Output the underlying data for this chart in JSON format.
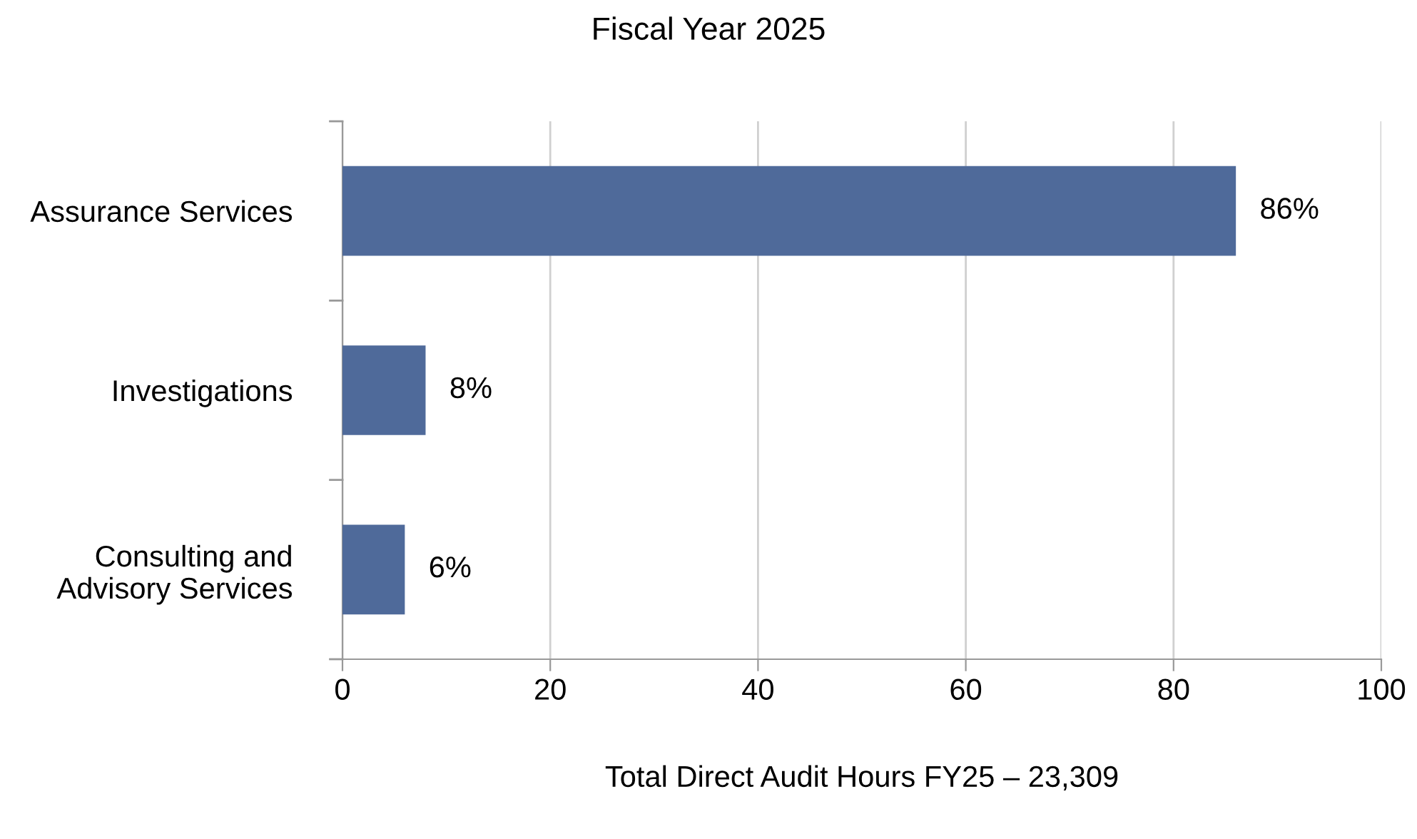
{
  "chart_data": {
    "type": "bar",
    "orientation": "horizontal",
    "title": "Fiscal Year 2025",
    "xlabel": "Total Direct Audit Hours FY25 – 23,309",
    "categories": [
      "Assurance Services",
      "Investigations",
      "Consulting and\nAdvisory Services"
    ],
    "values": [
      86,
      8,
      6
    ],
    "value_labels": [
      "86%",
      "8%",
      "6%"
    ],
    "color": "#4f6a9a",
    "xlim": [
      0,
      100
    ],
    "xticks": [
      0,
      20,
      40,
      60,
      80,
      100
    ],
    "grid": "x"
  }
}
